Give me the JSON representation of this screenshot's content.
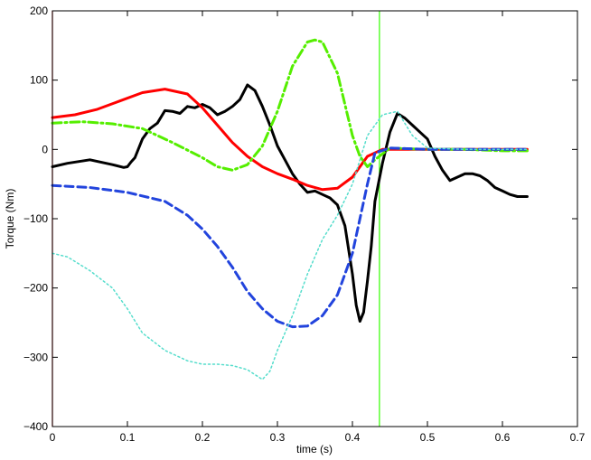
{
  "chart_data": {
    "type": "line",
    "title": "",
    "xlabel": "time (s)",
    "ylabel": "Torque (Nm)",
    "xlim": [
      0,
      0.7
    ],
    "ylim": [
      -400,
      200
    ],
    "xticks": [
      0,
      0.1,
      0.2,
      0.3,
      0.4,
      0.5,
      0.6,
      0.7
    ],
    "yticks": [
      -400,
      -300,
      -200,
      -100,
      0,
      100,
      200
    ],
    "xtick_labels": [
      "0",
      "0.1",
      "0.2",
      "0.3",
      "0.4",
      "0.5",
      "0.6",
      "0.7"
    ],
    "ytick_labels": [
      "−400",
      "−300",
      "−200",
      "−100",
      "0",
      "100",
      "200"
    ],
    "grid": false,
    "legend": "none",
    "vertical_markers": [
      {
        "x": 0.0,
        "color": "#e00000"
      },
      {
        "x": 0.436,
        "color": "#33ff00"
      }
    ],
    "series": [
      {
        "color": "#000000",
        "style": "solid",
        "width": 3,
        "x": [
          0,
          0.02,
          0.05,
          0.08,
          0.095,
          0.1,
          0.105,
          0.11,
          0.12,
          0.13,
          0.14,
          0.15,
          0.16,
          0.17,
          0.18,
          0.19,
          0.2,
          0.21,
          0.22,
          0.23,
          0.24,
          0.25,
          0.26,
          0.27,
          0.28,
          0.29,
          0.3,
          0.31,
          0.32,
          0.33,
          0.34,
          0.35,
          0.36,
          0.37,
          0.38,
          0.39,
          0.4,
          0.405,
          0.41,
          0.415,
          0.42,
          0.425,
          0.43,
          0.44,
          0.45,
          0.46,
          0.47,
          0.48,
          0.49,
          0.5,
          0.51,
          0.52,
          0.53,
          0.54,
          0.55,
          0.56,
          0.57,
          0.58,
          0.59,
          0.6,
          0.61,
          0.62,
          0.633
        ],
        "y": [
          -25,
          -20,
          -15,
          -22,
          -26,
          -25,
          -18,
          -12,
          15,
          30,
          38,
          56,
          55,
          52,
          62,
          60,
          65,
          60,
          50,
          55,
          62,
          72,
          93,
          85,
          62,
          35,
          5,
          -15,
          -35,
          -50,
          -62,
          -60,
          -65,
          -70,
          -80,
          -110,
          -180,
          -225,
          -248,
          -235,
          -190,
          -140,
          -75,
          -20,
          25,
          52,
          45,
          35,
          25,
          15,
          -10,
          -30,
          -45,
          -40,
          -35,
          -35,
          -38,
          -45,
          -55,
          -60,
          -65,
          -68,
          -68
        ]
      },
      {
        "color": "#ff0000",
        "style": "solid",
        "width": 3,
        "x": [
          0,
          0.03,
          0.06,
          0.09,
          0.12,
          0.15,
          0.18,
          0.2,
          0.22,
          0.24,
          0.26,
          0.28,
          0.3,
          0.32,
          0.34,
          0.36,
          0.38,
          0.4,
          0.42,
          0.44,
          0.5,
          0.55,
          0.6,
          0.633
        ],
        "y": [
          46,
          50,
          58,
          70,
          82,
          87,
          80,
          60,
          35,
          10,
          -10,
          -25,
          -35,
          -43,
          -52,
          -58,
          -56,
          -40,
          -10,
          0,
          0,
          0,
          0,
          0
        ]
      },
      {
        "color": "#55ee00",
        "style": "dashdot",
        "width": 3,
        "x": [
          0,
          0.04,
          0.08,
          0.12,
          0.16,
          0.2,
          0.22,
          0.24,
          0.26,
          0.28,
          0.3,
          0.32,
          0.34,
          0.35,
          0.36,
          0.38,
          0.4,
          0.41,
          0.42,
          0.43,
          0.45,
          0.5,
          0.55,
          0.6,
          0.633
        ],
        "y": [
          38,
          40,
          37,
          30,
          10,
          -12,
          -25,
          -30,
          -22,
          5,
          55,
          120,
          155,
          158,
          155,
          110,
          20,
          -10,
          -25,
          -15,
          2,
          0,
          0,
          -2,
          -2
        ]
      },
      {
        "color": "#2244dd",
        "style": "dashed",
        "width": 3,
        "x": [
          0,
          0.05,
          0.1,
          0.15,
          0.18,
          0.2,
          0.22,
          0.24,
          0.26,
          0.28,
          0.3,
          0.32,
          0.34,
          0.36,
          0.38,
          0.4,
          0.41,
          0.42,
          0.43,
          0.45,
          0.5,
          0.55,
          0.6,
          0.633
        ],
        "y": [
          -52,
          -55,
          -62,
          -75,
          -95,
          -115,
          -140,
          -170,
          -205,
          -230,
          -248,
          -256,
          -255,
          -240,
          -210,
          -150,
          -100,
          -50,
          -5,
          2,
          0,
          0,
          0,
          0
        ]
      },
      {
        "color": "#55ddcc",
        "style": "dotted",
        "width": 1.5,
        "x": [
          0,
          0.02,
          0.05,
          0.08,
          0.1,
          0.12,
          0.15,
          0.18,
          0.2,
          0.22,
          0.24,
          0.26,
          0.28,
          0.29,
          0.3,
          0.32,
          0.34,
          0.36,
          0.38,
          0.4,
          0.42,
          0.44,
          0.46,
          0.48,
          0.5,
          0.55,
          0.6,
          0.633
        ],
        "y": [
          -150,
          -155,
          -175,
          -200,
          -230,
          -265,
          -290,
          -305,
          -310,
          -310,
          -312,
          -318,
          -332,
          -320,
          -290,
          -240,
          -180,
          -130,
          -95,
          -50,
          20,
          50,
          55,
          20,
          2,
          0,
          0,
          0
        ]
      }
    ]
  }
}
